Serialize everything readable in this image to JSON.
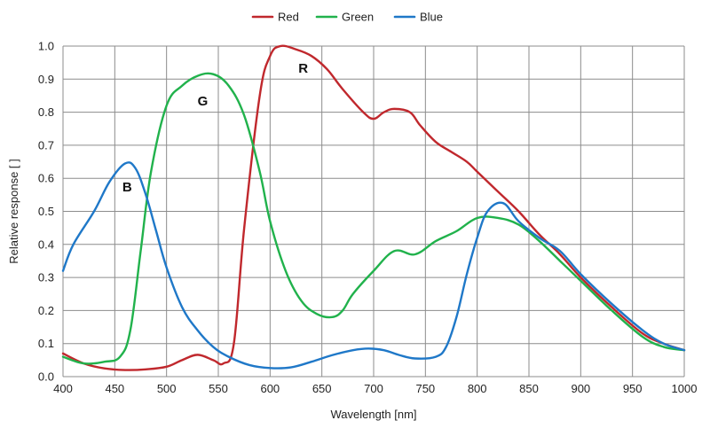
{
  "chart_data": {
    "type": "line",
    "title": "",
    "xlabel": "Wavelength [nm]",
    "ylabel": "Relative response [ ]",
    "xlim": [
      400,
      1000
    ],
    "ylim": [
      0,
      1.0
    ],
    "xticks": [
      400,
      450,
      500,
      550,
      600,
      650,
      700,
      750,
      800,
      850,
      900,
      950,
      1000
    ],
    "yticks": [
      "0.0",
      "0.1",
      "0.2",
      "0.3",
      "0.4",
      "0.5",
      "0.6",
      "0.7",
      "0.8",
      "0.9",
      "1.0"
    ],
    "grid": true,
    "legend_position": "top-center",
    "series": [
      {
        "name": "Red",
        "color": "#c0282d",
        "x": [
          400,
          420,
          440,
          460,
          480,
          500,
          515,
          530,
          545,
          555,
          565,
          575,
          590,
          600,
          610,
          625,
          640,
          655,
          670,
          690,
          700,
          710,
          720,
          735,
          745,
          760,
          775,
          790,
          800,
          820,
          840,
          860,
          880,
          900,
          930,
          960,
          980,
          1000
        ],
        "y": [
          0.07,
          0.04,
          0.025,
          0.02,
          0.022,
          0.03,
          0.05,
          0.066,
          0.05,
          0.04,
          0.1,
          0.45,
          0.85,
          0.97,
          1.0,
          0.99,
          0.97,
          0.93,
          0.87,
          0.8,
          0.78,
          0.8,
          0.81,
          0.8,
          0.76,
          0.71,
          0.68,
          0.65,
          0.62,
          0.56,
          0.5,
          0.43,
          0.37,
          0.3,
          0.21,
          0.13,
          0.1,
          0.08
        ]
      },
      {
        "name": "Green",
        "color": "#21b24c",
        "x": [
          400,
          420,
          440,
          455,
          465,
          475,
          485,
          500,
          515,
          530,
          545,
          560,
          575,
          590,
          600,
          615,
          630,
          645,
          660,
          670,
          680,
          700,
          720,
          740,
          760,
          780,
          800,
          820,
          840,
          860,
          880,
          900,
          930,
          960,
          980,
          1000
        ],
        "y": [
          0.06,
          0.04,
          0.045,
          0.06,
          0.14,
          0.38,
          0.62,
          0.82,
          0.88,
          0.91,
          0.915,
          0.88,
          0.79,
          0.62,
          0.47,
          0.32,
          0.23,
          0.19,
          0.18,
          0.2,
          0.25,
          0.32,
          0.38,
          0.37,
          0.41,
          0.44,
          0.48,
          0.48,
          0.46,
          0.41,
          0.35,
          0.29,
          0.2,
          0.12,
          0.09,
          0.08
        ]
      },
      {
        "name": "Blue",
        "color": "#1f78c8",
        "x": [
          400,
          410,
          430,
          445,
          460,
          470,
          480,
          490,
          500,
          515,
          530,
          545,
          560,
          580,
          600,
          620,
          640,
          660,
          680,
          695,
          710,
          725,
          740,
          760,
          770,
          780,
          790,
          800,
          810,
          825,
          840,
          860,
          880,
          900,
          930,
          960,
          980,
          1000
        ],
        "y": [
          0.32,
          0.4,
          0.5,
          0.59,
          0.645,
          0.63,
          0.55,
          0.44,
          0.33,
          0.21,
          0.14,
          0.09,
          0.06,
          0.035,
          0.026,
          0.028,
          0.045,
          0.065,
          0.08,
          0.085,
          0.08,
          0.065,
          0.055,
          0.06,
          0.09,
          0.18,
          0.31,
          0.42,
          0.5,
          0.525,
          0.47,
          0.42,
          0.38,
          0.31,
          0.22,
          0.14,
          0.1,
          0.08
        ]
      }
    ],
    "annotations": [
      {
        "text": "B",
        "x": 462,
        "y": 0.56
      },
      {
        "text": "G",
        "x": 535,
        "y": 0.82
      },
      {
        "text": "R",
        "x": 632,
        "y": 0.92
      }
    ]
  }
}
